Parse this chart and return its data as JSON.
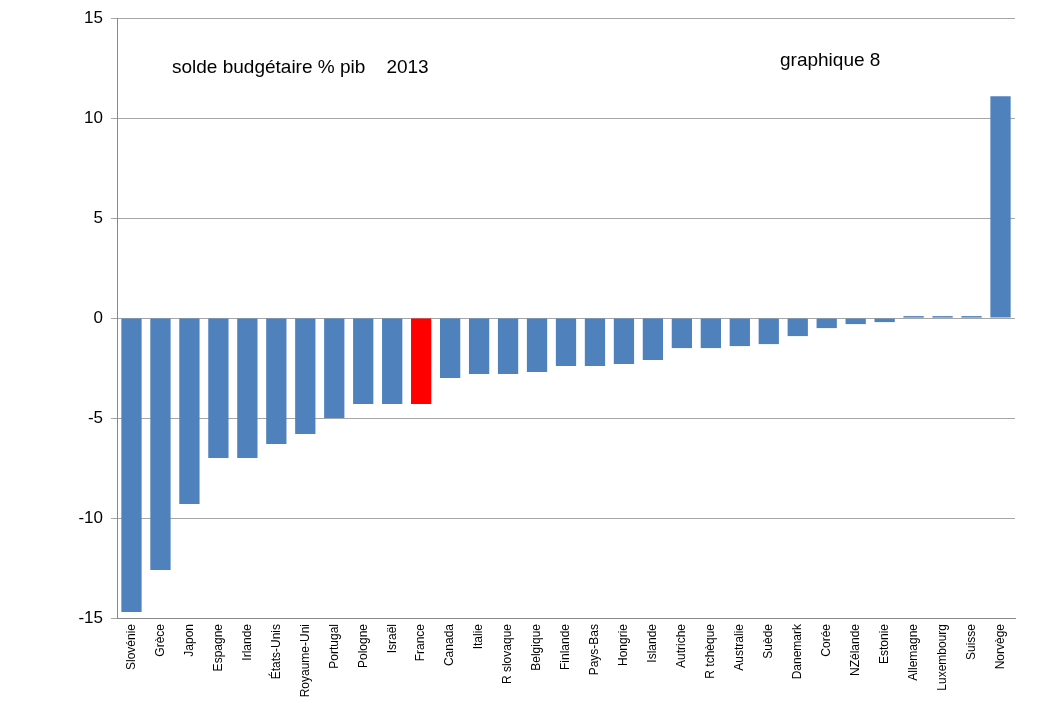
{
  "chart_data": {
    "type": "bar",
    "title": "solde budgétaire % pib    2013",
    "annotations": [
      "graphique 8"
    ],
    "categories": [
      "Slovénie",
      "Grèce",
      "Japon",
      "Espagne",
      "Irlande",
      "États-Unis",
      "Royaume-Uni",
      "Portugal",
      "Pologne",
      "Israël",
      "France",
      "Canada",
      "Italie",
      "R slovaque",
      "Belgique",
      "Finlande",
      "Pays-Bas",
      "Hongrie",
      "Islande",
      "Autriche",
      "R tchèque",
      "Australie",
      "Suède",
      "Danemark",
      "Corée",
      "NZélande",
      "Estonie",
      "Allemagne",
      "Luxembourg",
      "Suisse",
      "Norvège"
    ],
    "values": [
      -14.7,
      -12.6,
      -9.3,
      -7.0,
      -7.0,
      -6.3,
      -5.8,
      -5.0,
      -4.3,
      -4.3,
      -4.3,
      -3.0,
      -2.8,
      -2.8,
      -2.7,
      -2.4,
      -2.4,
      -2.3,
      -2.1,
      -1.5,
      -1.5,
      -1.4,
      -1.3,
      -0.9,
      -0.5,
      -0.3,
      -0.2,
      0.1,
      0.1,
      0.1,
      11.1
    ],
    "colors": [
      "#4f81bd",
      "#4f81bd",
      "#4f81bd",
      "#4f81bd",
      "#4f81bd",
      "#4f81bd",
      "#4f81bd",
      "#4f81bd",
      "#4f81bd",
      "#4f81bd",
      "#ff0000",
      "#4f81bd",
      "#4f81bd",
      "#4f81bd",
      "#4f81bd",
      "#4f81bd",
      "#4f81bd",
      "#4f81bd",
      "#4f81bd",
      "#4f81bd",
      "#4f81bd",
      "#4f81bd",
      "#4f81bd",
      "#4f81bd",
      "#4f81bd",
      "#4f81bd",
      "#4f81bd",
      "#4f81bd",
      "#4f81bd",
      "#4f81bd",
      "#4f81bd"
    ],
    "ylim": [
      -15,
      15
    ],
    "yticks": [
      -15,
      -10,
      -5,
      0,
      5,
      10,
      15
    ],
    "grid": "y"
  }
}
